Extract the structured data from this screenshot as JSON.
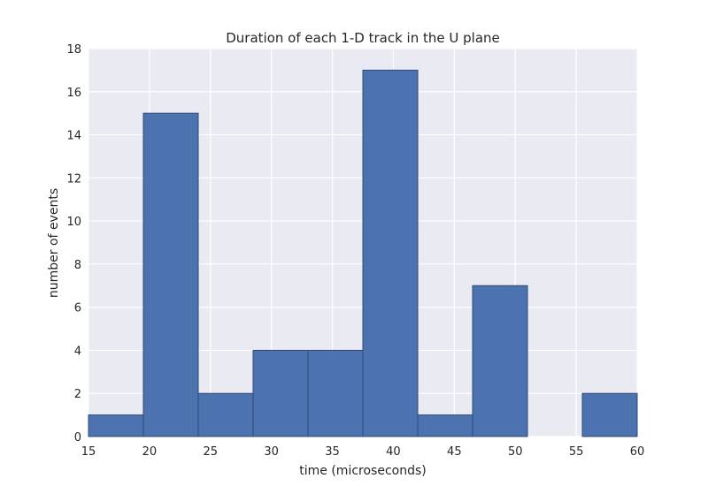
{
  "chart_data": {
    "type": "bar",
    "title": "Duration of each 1-D track in the U plane",
    "xlabel": "time (microseconds)",
    "ylabel": "number of events",
    "xlim": [
      15,
      60
    ],
    "ylim": [
      0,
      18
    ],
    "xticks": [
      15,
      20,
      25,
      30,
      35,
      40,
      45,
      50,
      55,
      60
    ],
    "yticks": [
      0,
      2,
      4,
      6,
      8,
      10,
      12,
      14,
      16,
      18
    ],
    "bins": [
      15,
      19.5,
      24,
      28.5,
      33,
      37.5,
      42,
      46.5,
      51,
      55.5,
      60
    ],
    "counts": [
      1,
      15,
      2,
      4,
      4,
      17,
      1,
      7,
      0,
      2
    ],
    "bar_color": "#4c72b0",
    "background_color": "#eaeaf2",
    "grid": true
  }
}
